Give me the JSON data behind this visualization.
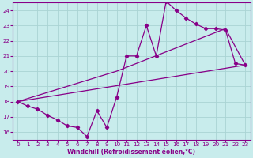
{
  "xlabel": "Windchill (Refroidissement éolien,°C)",
  "xlim": [
    -0.5,
    23.5
  ],
  "ylim": [
    15.5,
    24.5
  ],
  "xticks": [
    0,
    1,
    2,
    3,
    4,
    5,
    6,
    7,
    8,
    9,
    10,
    11,
    12,
    13,
    14,
    15,
    16,
    17,
    18,
    19,
    20,
    21,
    22,
    23
  ],
  "yticks": [
    16,
    17,
    18,
    19,
    20,
    21,
    22,
    23,
    24
  ],
  "bg_color": "#c8ecec",
  "line_color": "#880088",
  "grid_color": "#aad4d4",
  "data_x": [
    0,
    1,
    2,
    3,
    4,
    5,
    6,
    7,
    8,
    9,
    10,
    11,
    12,
    13,
    14,
    15,
    16,
    17,
    18,
    19,
    20,
    21,
    22,
    23
  ],
  "data_y": [
    18.0,
    17.7,
    17.5,
    17.1,
    16.8,
    16.4,
    16.3,
    15.7,
    17.4,
    16.3,
    18.3,
    21.0,
    21.0,
    23.0,
    21.0,
    24.6,
    24.0,
    23.5,
    23.1,
    22.8,
    22.8,
    22.7,
    20.5,
    20.4
  ],
  "trend_line1_x": [
    0,
    23
  ],
  "trend_line1_y": [
    18.0,
    20.4
  ],
  "trend_line2_x": [
    0,
    10,
    21,
    23
  ],
  "trend_line2_y": [
    18.0,
    20.0,
    22.8,
    20.4
  ],
  "xlabel_fontsize": 5.5,
  "tick_fontsize": 5.2
}
